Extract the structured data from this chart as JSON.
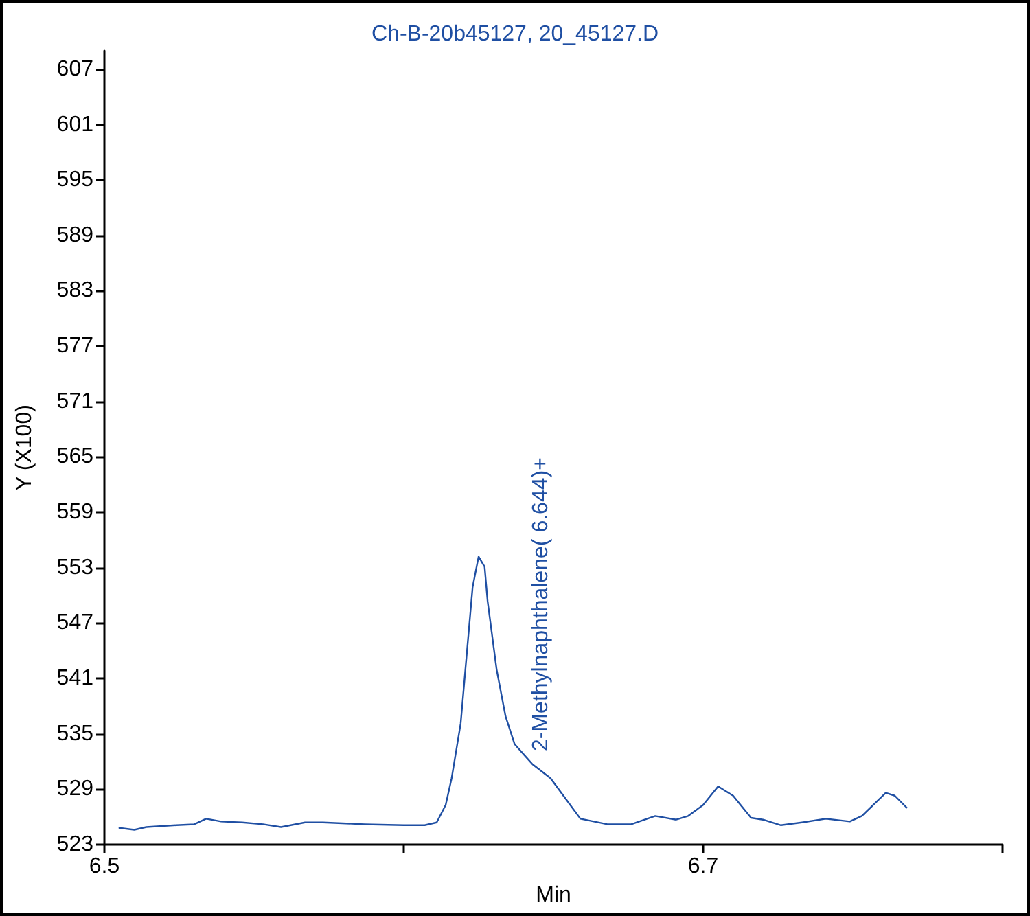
{
  "chart_data": {
    "type": "line",
    "title": "Ch-B-20b45127, 20_45127.D",
    "xlabel": "Min",
    "ylabel": "Y (X100)",
    "x": [
      6.505,
      6.51,
      6.514,
      6.524,
      6.53,
      6.534,
      6.539,
      6.546,
      6.553,
      6.559,
      6.567,
      6.573,
      6.587,
      6.6,
      6.607,
      6.611,
      6.614,
      6.616,
      6.619,
      6.621,
      6.623,
      6.625,
      6.627,
      6.628,
      6.631,
      6.634,
      6.637,
      6.643,
      6.649,
      6.654,
      6.659,
      6.668,
      6.676,
      6.684,
      6.691,
      6.695,
      6.7,
      6.705,
      6.71,
      6.716,
      6.72,
      6.726,
      6.733,
      6.741,
      6.749,
      6.753,
      6.761,
      6.764,
      6.768
    ],
    "series": [
      {
        "color": "#1f4fa3",
        "values": [
          524.8,
          524.6,
          524.9,
          525.1,
          525.2,
          525.8,
          525.5,
          525.4,
          525.2,
          524.9,
          525.4,
          525.4,
          525.2,
          525.1,
          525.1,
          525.4,
          527.3,
          530.2,
          536.1,
          543.5,
          550.9,
          554.2,
          553.1,
          549.4,
          542,
          536.9,
          533.9,
          531.7,
          530.2,
          528,
          525.8,
          525.2,
          525.2,
          526.1,
          525.7,
          526.1,
          527.3,
          529.3,
          528.3,
          525.9,
          525.7,
          525.1,
          525.4,
          525.8,
          525.5,
          526.1,
          528.6,
          528.3,
          527
        ]
      }
    ],
    "xlim": [
      6.5,
      6.8
    ],
    "xticks": [
      6.5,
      {
        "value": 6.6,
        "label": null
      },
      6.7,
      {
        "value": 6.8,
        "label": null
      }
    ],
    "ylim": [
      523,
      609
    ],
    "yticks": [
      523,
      529,
      535,
      541,
      547,
      553,
      559,
      565,
      571,
      577,
      583,
      589,
      595,
      601,
      607
    ],
    "annotations": [
      "2-Methylnaphthalene( 6.644)+"
    ],
    "grid": false,
    "marker": "none",
    "line_style": "solid"
  }
}
